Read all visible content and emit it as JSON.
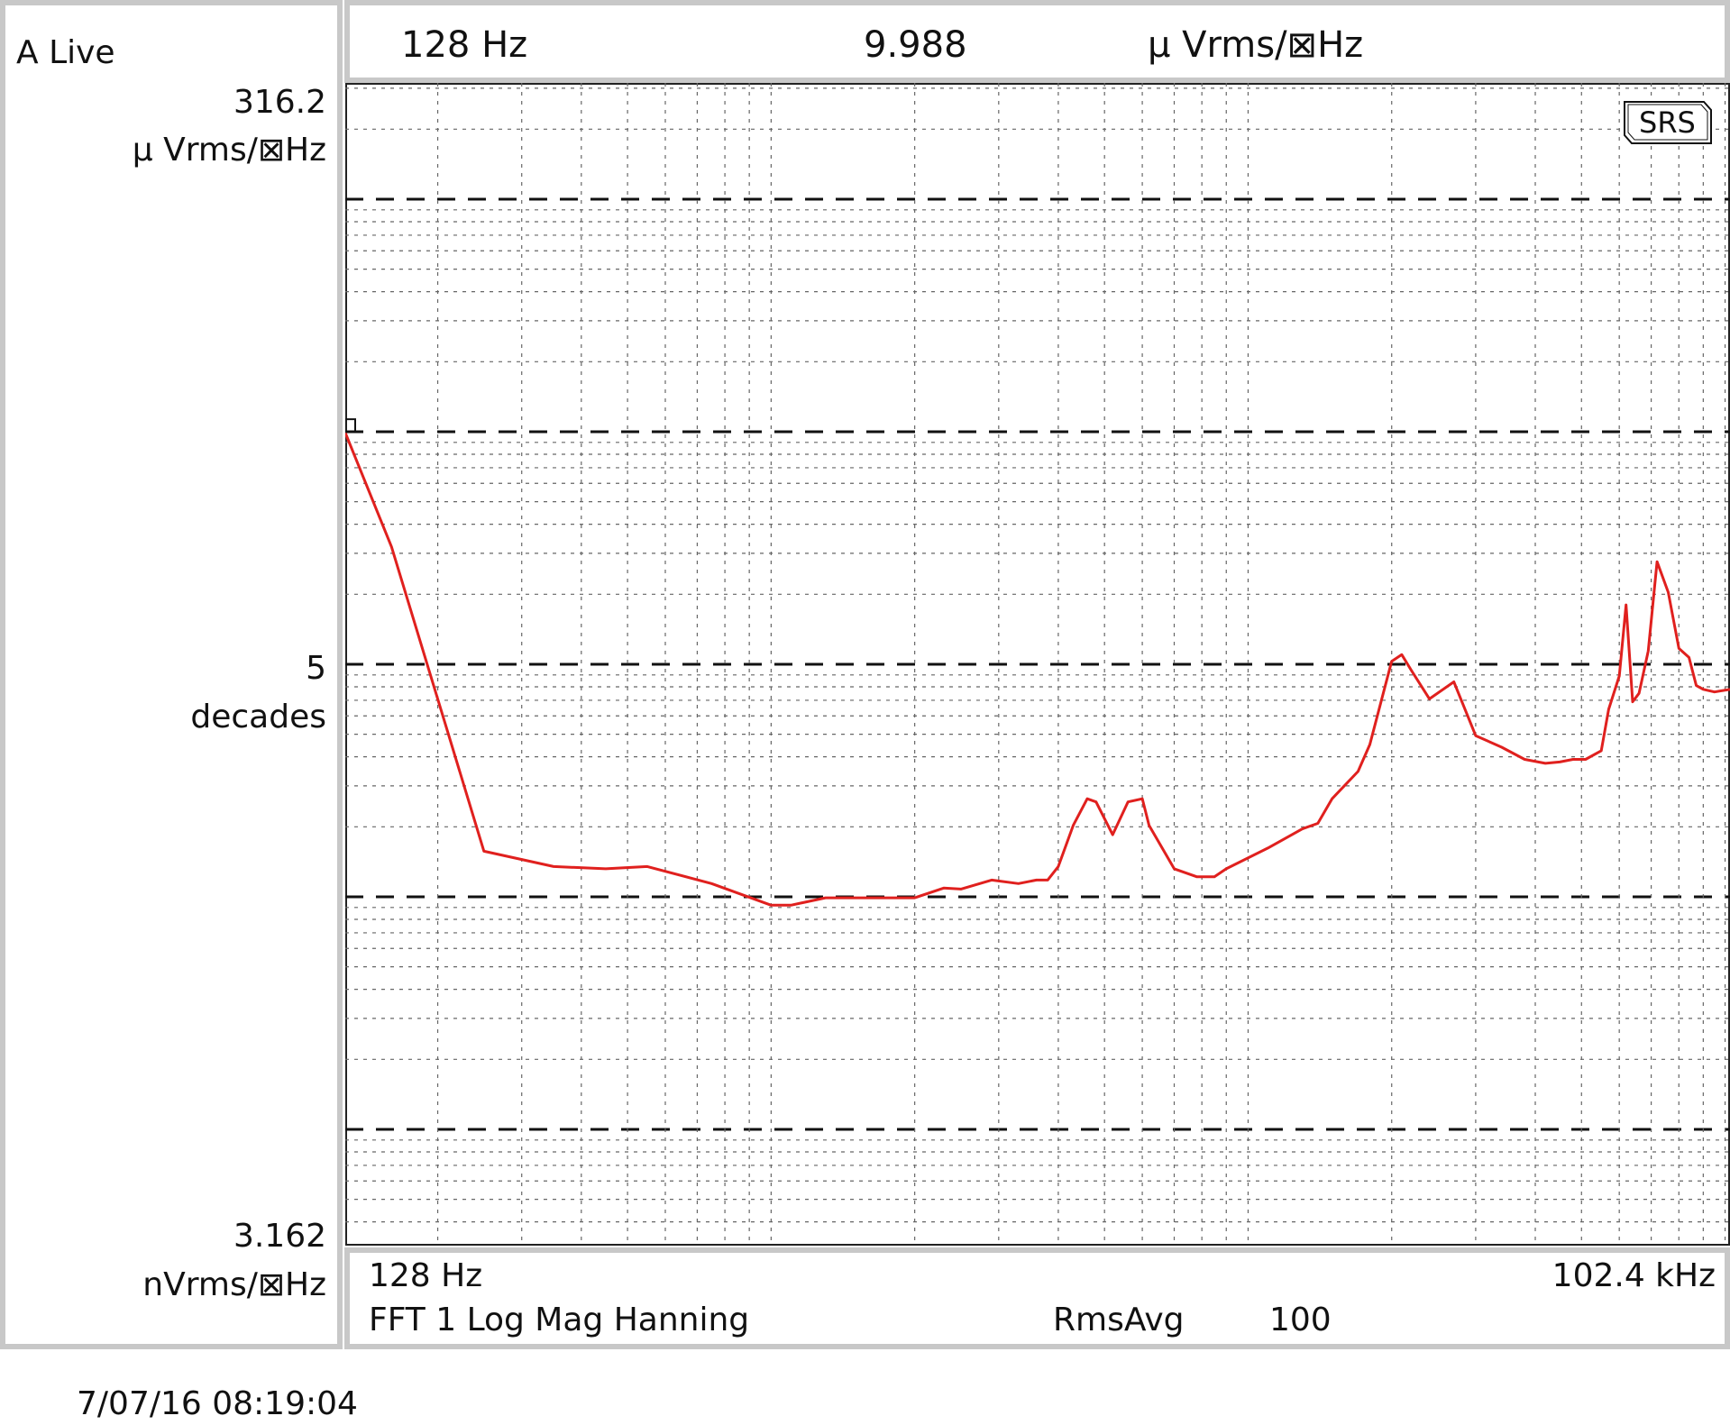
{
  "header": {
    "channel_label": "A Live",
    "marker_freq": "128 Hz",
    "marker_value": "9.988",
    "marker_unit": "μ Vrms/⊠Hz"
  },
  "y_axis": {
    "top_value": "316.2",
    "top_unit": "μ Vrms/⊠Hz",
    "mid_value": "5",
    "mid_unit": "decades",
    "bottom_value": "3.162",
    "bottom_unit": "nVrms/⊠Hz"
  },
  "footer": {
    "x_start": "128 Hz",
    "x_end": "102.4 kHz",
    "measurement": "FFT 1 Log Mag Hanning",
    "avg_label": "RmsAvg",
    "avg_count": "100"
  },
  "badge": "SRS",
  "timestamp": "7/07/16  08:19:04",
  "colors": {
    "trace": "#e0201e",
    "grid": "#555555",
    "border": "#c8c8c8"
  },
  "chart_data": {
    "type": "line",
    "x_scale": "log",
    "y_scale": "log",
    "xlim": [
      128,
      102400
    ],
    "ylim": [
      3.162e-09,
      0.0003162
    ],
    "x_unit": "Hz",
    "y_unit": "Vrms/√Hz",
    "marker": {
      "x": 128,
      "y": 9.988e-06
    },
    "series": [
      {
        "x": [
          128,
          160,
          250,
          350,
          450,
          550,
          750,
          1000,
          1100,
          1300,
          1500,
          2000,
          2300,
          2500,
          2900,
          3300,
          3600,
          3800,
          4000,
          4300,
          4600,
          4800,
          5200,
          5600,
          6000,
          6200,
          7000,
          7800,
          8500,
          9000,
          11000,
          13000,
          14000,
          15000,
          17000,
          18000,
          19000,
          20000,
          21000,
          22000,
          24000,
          27000,
          30000,
          34000,
          38000,
          42000,
          45000,
          48000,
          51000,
          55000,
          57000,
          60000,
          62000,
          64000,
          66000,
          69000,
          72000,
          76000,
          80000,
          84000,
          87000,
          90000,
          95000,
          102400
        ],
        "y": [
          9.9e-06,
          3.2e-06,
          1.57e-07,
          1.35e-07,
          1.32e-07,
          1.35e-07,
          1.14e-07,
          9.2e-08,
          9.2e-08,
          9.9e-08,
          9.9e-08,
          9.9e-08,
          1.09e-07,
          1.08e-07,
          1.18e-07,
          1.14e-07,
          1.18e-07,
          1.18e-07,
          1.35e-07,
          2.03e-07,
          2.64e-07,
          2.56e-07,
          1.85e-07,
          2.56e-07,
          2.64e-07,
          2.03e-07,
          1.32e-07,
          1.22e-07,
          1.22e-07,
          1.32e-07,
          1.62e-07,
          1.96e-07,
          2.07e-07,
          2.64e-07,
          3.46e-07,
          4.52e-07,
          6.9e-07,
          1.03e-06,
          1.1e-06,
          9.4e-07,
          7.1e-07,
          8.4e-07,
          4.93e-07,
          4.4e-07,
          3.9e-07,
          3.75e-07,
          3.8e-07,
          3.9e-07,
          3.9e-07,
          4.25e-07,
          6.4e-07,
          8.9e-07,
          1.8e-06,
          6.9e-07,
          7.5e-07,
          1.14e-06,
          2.76e-06,
          2.04e-06,
          1.17e-06,
          1.07e-06,
          8.1e-07,
          7.8e-07,
          7.6e-07,
          7.8e-07
        ]
      }
    ]
  }
}
